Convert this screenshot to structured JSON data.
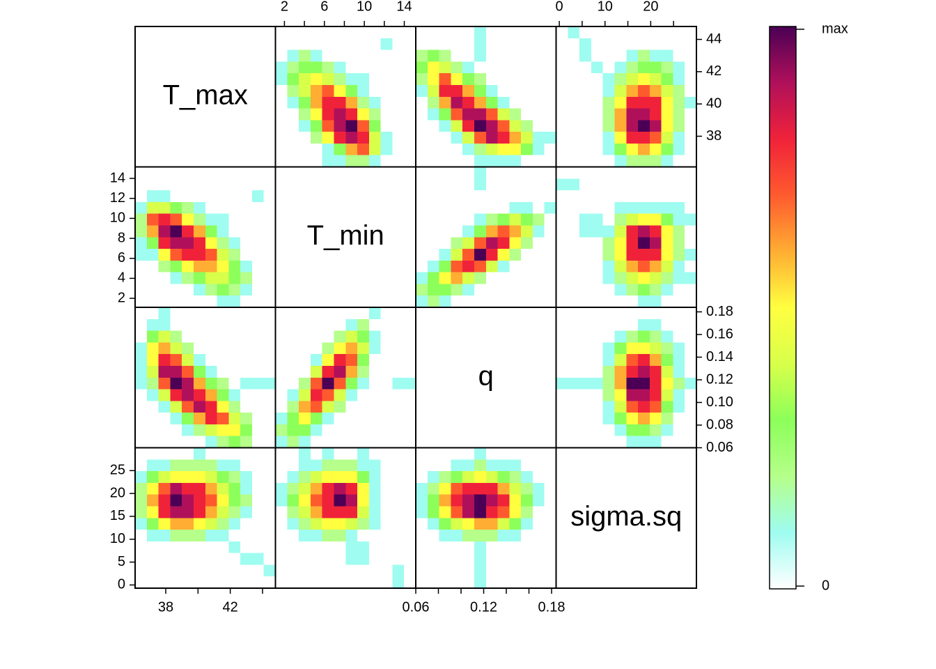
{
  "chart_data": {
    "type": "pairs",
    "variables": [
      {
        "name": "T_max",
        "lim": [
          36.1,
          44.8
        ],
        "ticks": [
          38,
          40,
          42,
          44
        ]
      },
      {
        "name": "T_min",
        "lim": [
          1.1,
          15.15
        ],
        "ticks": [
          2,
          4,
          6,
          8,
          10,
          12,
          14
        ]
      },
      {
        "name": "q",
        "lim": [
          0.06,
          0.184
        ],
        "ticks": [
          0.06,
          0.08,
          {
            "value": 0.1,
            "label": "0.10"
          },
          0.12,
          0.14,
          0.16,
          0.18
        ]
      },
      {
        "name": "sigma.sq",
        "lim": [
          -0.7,
          30
        ],
        "ticks": [
          0,
          5,
          10,
          15,
          20,
          25
        ]
      }
    ],
    "panels": [
      [
        [
          0,
          0,
          0,
          0,
          0,
          0,
          0,
          0,
          0,
          0,
          0,
          0
        ],
        [
          0,
          0,
          0,
          0,
          0,
          0,
          0,
          0,
          0,
          1,
          0,
          0
        ],
        [
          0,
          1,
          2,
          1,
          0,
          0,
          0,
          0,
          0,
          0,
          0,
          0
        ],
        [
          1,
          2,
          3,
          3,
          2,
          1,
          0,
          0,
          0,
          0,
          0,
          0
        ],
        [
          1,
          3,
          4,
          5,
          4,
          2,
          1,
          1,
          0,
          0,
          0,
          0
        ],
        [
          0,
          2,
          4,
          6,
          7,
          5,
          3,
          1,
          0,
          0,
          0,
          0
        ],
        [
          0,
          1,
          3,
          6,
          8,
          8,
          6,
          2,
          1,
          0,
          0,
          0
        ],
        [
          0,
          0,
          2,
          5,
          8,
          9,
          8,
          5,
          2,
          0,
          0,
          0
        ],
        [
          0,
          0,
          1,
          3,
          7,
          9,
          10,
          7,
          3,
          0,
          0,
          0
        ],
        [
          0,
          0,
          0,
          2,
          5,
          8,
          9,
          8,
          4,
          1,
          0,
          0
        ],
        [
          0,
          0,
          0,
          0,
          1,
          3,
          6,
          7,
          4,
          1,
          0,
          0
        ],
        [
          0,
          0,
          0,
          0,
          1,
          1,
          2,
          2,
          1,
          0,
          0,
          0
        ]
      ],
      [
        [
          0,
          0,
          0,
          0,
          0,
          1,
          0,
          0,
          0,
          0,
          0,
          0
        ],
        [
          0,
          0,
          0,
          0,
          0,
          1,
          0,
          0,
          0,
          0,
          0,
          0
        ],
        [
          2,
          3,
          2,
          0,
          0,
          1,
          0,
          0,
          0,
          0,
          0,
          0
        ],
        [
          3,
          5,
          4,
          2,
          1,
          0,
          0,
          0,
          0,
          0,
          0,
          0
        ],
        [
          2,
          5,
          7,
          5,
          3,
          2,
          0,
          0,
          0,
          0,
          0,
          0
        ],
        [
          1,
          4,
          8,
          8,
          6,
          3,
          1,
          0,
          0,
          0,
          0,
          0
        ],
        [
          0,
          2,
          6,
          9,
          8,
          6,
          3,
          1,
          0,
          0,
          0,
          0
        ],
        [
          0,
          1,
          3,
          7,
          9,
          9,
          7,
          4,
          2,
          0,
          0,
          0
        ],
        [
          0,
          0,
          1,
          4,
          8,
          10,
          9,
          7,
          4,
          2,
          0,
          0
        ],
        [
          0,
          0,
          0,
          1,
          4,
          7,
          9,
          8,
          6,
          4,
          1,
          1
        ],
        [
          0,
          0,
          0,
          0,
          1,
          2,
          4,
          5,
          5,
          3,
          1,
          0
        ],
        [
          0,
          0,
          0,
          0,
          0,
          1,
          1,
          1,
          1,
          0,
          0,
          0
        ]
      ],
      [
        [
          0,
          1,
          0,
          0,
          0,
          0,
          0,
          0,
          0,
          0,
          0,
          0
        ],
        [
          0,
          0,
          1,
          0,
          0,
          0,
          0,
          0,
          0,
          0,
          0,
          0
        ],
        [
          0,
          0,
          1,
          0,
          0,
          0,
          1,
          2,
          1,
          1,
          0,
          0
        ],
        [
          0,
          0,
          0,
          1,
          0,
          1,
          2,
          3,
          3,
          2,
          1,
          0
        ],
        [
          0,
          0,
          0,
          0,
          1,
          2,
          4,
          5,
          4,
          3,
          1,
          0
        ],
        [
          0,
          0,
          0,
          0,
          1,
          4,
          6,
          7,
          6,
          4,
          2,
          0
        ],
        [
          0,
          0,
          0,
          0,
          2,
          5,
          8,
          8,
          8,
          5,
          2,
          1
        ],
        [
          0,
          0,
          0,
          0,
          2,
          6,
          9,
          9,
          8,
          5,
          2,
          0
        ],
        [
          0,
          0,
          0,
          0,
          2,
          6,
          9,
          10,
          9,
          5,
          2,
          0
        ],
        [
          0,
          0,
          0,
          0,
          1,
          5,
          8,
          8,
          7,
          4,
          1,
          0
        ],
        [
          0,
          0,
          0,
          0,
          1,
          3,
          5,
          6,
          5,
          3,
          1,
          0
        ],
        [
          0,
          0,
          0,
          0,
          0,
          1,
          2,
          2,
          2,
          1,
          0,
          0
        ]
      ],
      [
        [
          0,
          0,
          0,
          0,
          0,
          1,
          0,
          0,
          0,
          0,
          0,
          0
        ],
        [
          0,
          0,
          0,
          0,
          0,
          1,
          0,
          0,
          0,
          0,
          0,
          0
        ],
        [
          0,
          0,
          0,
          0,
          0,
          0,
          0,
          0,
          0,
          0,
          0,
          0
        ],
        [
          0,
          0,
          0,
          0,
          0,
          0,
          0,
          0,
          1,
          1,
          0,
          1
        ],
        [
          0,
          0,
          0,
          0,
          0,
          1,
          2,
          3,
          4,
          3,
          2,
          0
        ],
        [
          0,
          0,
          0,
          0,
          1,
          3,
          6,
          7,
          6,
          4,
          1,
          0
        ],
        [
          0,
          0,
          0,
          2,
          4,
          7,
          9,
          8,
          5,
          2,
          0,
          0
        ],
        [
          0,
          0,
          1,
          4,
          7,
          10,
          8,
          5,
          2,
          0,
          0,
          0
        ],
        [
          0,
          1,
          3,
          7,
          8,
          7,
          4,
          1,
          0,
          0,
          0,
          0
        ],
        [
          1,
          3,
          5,
          6,
          4,
          2,
          0,
          0,
          0,
          0,
          0,
          0
        ],
        [
          2,
          3,
          3,
          2,
          1,
          0,
          0,
          0,
          0,
          0,
          0,
          0
        ],
        [
          1,
          2,
          1,
          0,
          0,
          0,
          0,
          0,
          0,
          0,
          0,
          0
        ]
      ],
      [
        [
          0,
          0,
          0,
          0,
          0,
          0,
          0,
          0,
          0,
          0,
          0,
          0
        ],
        [
          1,
          1,
          0,
          0,
          0,
          0,
          0,
          0,
          0,
          0,
          0,
          0
        ],
        [
          0,
          0,
          0,
          0,
          0,
          0,
          0,
          0,
          0,
          0,
          0,
          0
        ],
        [
          0,
          0,
          0,
          0,
          0,
          1,
          1,
          1,
          1,
          1,
          1,
          0
        ],
        [
          0,
          0,
          1,
          1,
          0,
          2,
          4,
          5,
          5,
          3,
          1,
          1
        ],
        [
          0,
          0,
          1,
          1,
          1,
          4,
          8,
          9,
          8,
          5,
          2,
          0
        ],
        [
          0,
          0,
          0,
          0,
          2,
          5,
          8,
          10,
          9,
          5,
          2,
          0
        ],
        [
          0,
          0,
          0,
          0,
          2,
          5,
          8,
          8,
          8,
          5,
          2,
          1
        ],
        [
          0,
          0,
          0,
          0,
          1,
          4,
          6,
          7,
          6,
          4,
          1,
          0
        ],
        [
          0,
          0,
          0,
          0,
          1,
          2,
          4,
          5,
          4,
          2,
          1,
          1
        ],
        [
          0,
          0,
          0,
          0,
          0,
          1,
          2,
          3,
          2,
          1,
          0,
          0
        ],
        [
          0,
          0,
          0,
          0,
          0,
          0,
          0,
          1,
          1,
          0,
          0,
          0
        ]
      ],
      [
        [
          0,
          0,
          0,
          0,
          0,
          0,
          0,
          0,
          0,
          0,
          0,
          0
        ],
        [
          0,
          0,
          0,
          0,
          0,
          0,
          0,
          1,
          1,
          0,
          0,
          0
        ],
        [
          0,
          0,
          0,
          0,
          0,
          1,
          2,
          3,
          2,
          1,
          0,
          0
        ],
        [
          0,
          0,
          0,
          0,
          1,
          3,
          5,
          5,
          4,
          2,
          1,
          0
        ],
        [
          0,
          0,
          0,
          0,
          1,
          4,
          7,
          8,
          6,
          3,
          1,
          0
        ],
        [
          0,
          0,
          0,
          0,
          2,
          6,
          8,
          9,
          8,
          4,
          1,
          0
        ],
        [
          1,
          1,
          1,
          1,
          2,
          6,
          10,
          10,
          8,
          5,
          2,
          1
        ],
        [
          0,
          0,
          0,
          0,
          2,
          5,
          9,
          9,
          8,
          4,
          1,
          0
        ],
        [
          0,
          0,
          0,
          0,
          1,
          4,
          7,
          8,
          7,
          3,
          1,
          0
        ],
        [
          0,
          0,
          0,
          0,
          1,
          3,
          5,
          6,
          5,
          2,
          0,
          0
        ],
        [
          0,
          0,
          0,
          0,
          0,
          1,
          3,
          3,
          2,
          1,
          0,
          0
        ],
        [
          0,
          0,
          0,
          0,
          0,
          0,
          1,
          1,
          1,
          0,
          0,
          0
        ]
      ]
    ],
    "colorbar": {
      "lim": [
        0,
        10
      ],
      "ticks": [
        0,
        {
          "value": 10,
          "label": "max"
        }
      ],
      "colors": [
        "#ffffff",
        "#9ffcf0",
        "#b5ff8a",
        "#8cff5a",
        "#d8ff4a",
        "#ffff40",
        "#ffad33",
        "#ff5a2e",
        "#f0223a",
        "#b0105a",
        "#4b0055"
      ]
    }
  }
}
